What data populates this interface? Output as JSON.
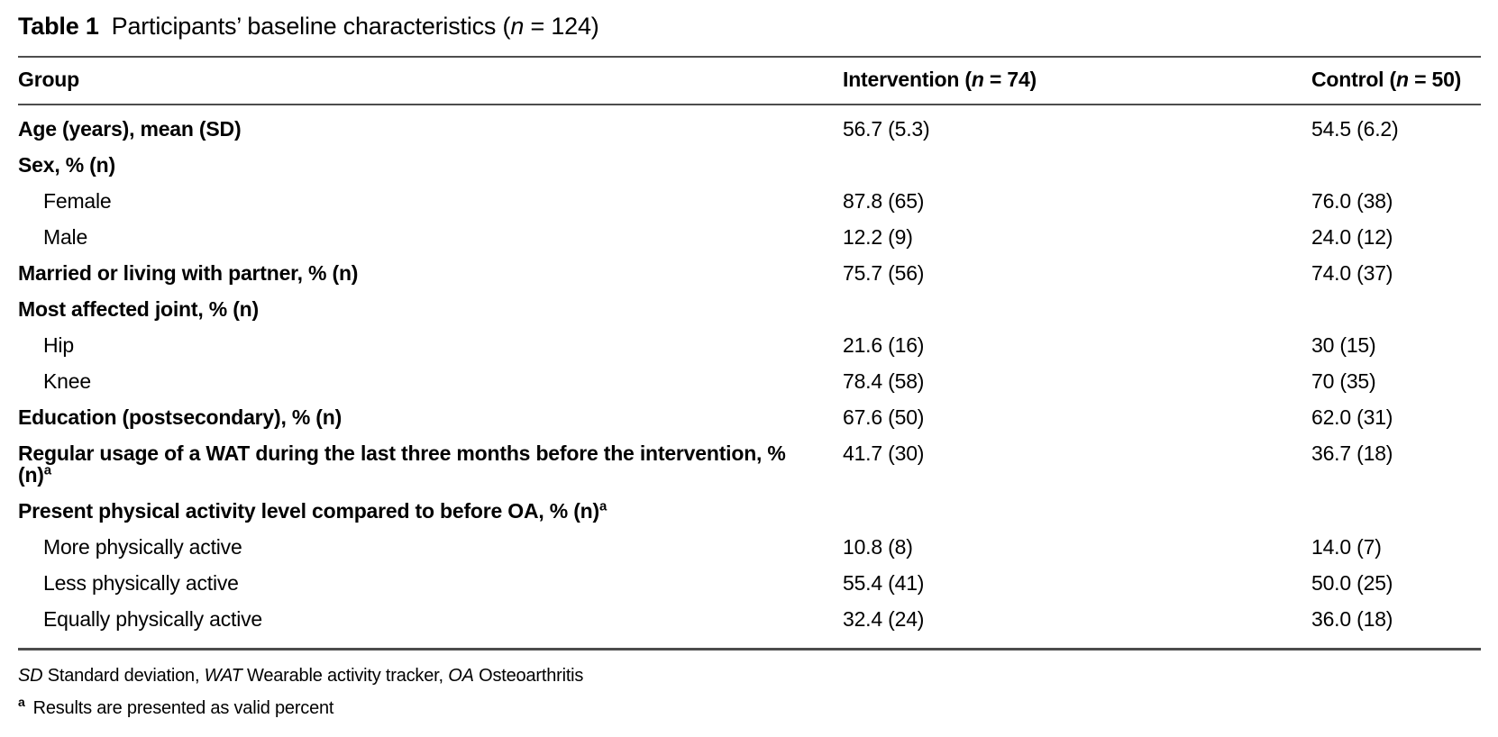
{
  "caption": {
    "label": "Table 1",
    "description_prefix": "Participants’ baseline characteristics (",
    "n_symbol": "n",
    "description_suffix": " = 124)"
  },
  "columns": {
    "group": "Group",
    "intervention_prefix": "Intervention (",
    "intervention_n": "n",
    "intervention_suffix": " = 74)",
    "control_prefix": "Control (",
    "control_n": "n",
    "control_suffix": " = 50)"
  },
  "rows": [
    {
      "label": "Age (years), mean (SD)",
      "style": "category",
      "sup": "",
      "intervention": "56.7 (5.3)",
      "control": "54.5 (6.2)"
    },
    {
      "label": "Sex, % (n)",
      "style": "category",
      "sup": "",
      "intervention": "",
      "control": ""
    },
    {
      "label": "Female",
      "style": "sub",
      "sup": "",
      "intervention": "87.8 (65)",
      "control": "76.0 (38)"
    },
    {
      "label": "Male",
      "style": "sub",
      "sup": "",
      "intervention": "12.2 (9)",
      "control": "24.0 (12)"
    },
    {
      "label": "Married or living with partner, % (n)",
      "style": "category",
      "sup": "",
      "intervention": "75.7 (56)",
      "control": "74.0 (37)"
    },
    {
      "label": "Most affected joint, % (n)",
      "style": "category",
      "sup": "",
      "intervention": "",
      "control": ""
    },
    {
      "label": "Hip",
      "style": "sub",
      "sup": "",
      "intervention": "21.6 (16)",
      "control": "30 (15)"
    },
    {
      "label": "Knee",
      "style": "sub",
      "sup": "",
      "intervention": "78.4 (58)",
      "control": "70 (35)"
    },
    {
      "label": "Education (postsecondary), % (n)",
      "style": "category",
      "sup": "",
      "intervention": "67.6 (50)",
      "control": "62.0 (31)"
    },
    {
      "label": "Regular usage of a WAT during the last three months before the intervention, % (n)",
      "style": "category",
      "sup": "a",
      "intervention": "41.7 (30)",
      "control": "36.7 (18)"
    },
    {
      "label": "Present physical activity level compared to before OA, % (n)",
      "style": "category",
      "sup": "a",
      "intervention": "",
      "control": ""
    },
    {
      "label": "More physically active",
      "style": "sub",
      "sup": "",
      "intervention": "10.8 (8)",
      "control": "14.0 (7)"
    },
    {
      "label": "Less physically active",
      "style": "sub",
      "sup": "",
      "intervention": "55.4 (41)",
      "control": "50.0 (25)"
    },
    {
      "label": "Equally physically active",
      "style": "sub",
      "sup": "",
      "intervention": "32.4 (24)",
      "control": "36.0 (18)"
    }
  ],
  "footnotes": {
    "abbreviations": [
      {
        "term": "SD",
        "definition": "Standard deviation"
      },
      {
        "term": "WAT",
        "definition": "Wearable activity tracker"
      },
      {
        "term": "OA",
        "definition": "Osteoarthritis"
      }
    ],
    "separator": ", ",
    "notes": [
      {
        "marker": "a",
        "text": "Results are presented as valid percent"
      }
    ]
  }
}
